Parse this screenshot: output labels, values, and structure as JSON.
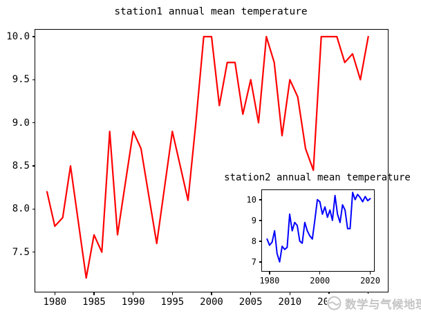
{
  "figure": {
    "background": "#ffffff",
    "watermark": {
      "text": "数学与气候地理",
      "color": "#c5c5c5",
      "icon": "wave-circle-logo"
    }
  },
  "chart_data": [
    {
      "id": "main",
      "type": "line",
      "title": "station1 annual mean temperature",
      "series_name": "station1",
      "color": "#ff0000",
      "line_width": 2.2,
      "xlabel": "",
      "ylabel": "",
      "legend": "none",
      "grid": false,
      "xlim": [
        1977.5,
        2022.5
      ],
      "ylim": [
        7.04,
        10.08
      ],
      "xticks": [
        1980,
        1985,
        1990,
        1995,
        2000,
        2005,
        2010,
        2015,
        2020
      ],
      "xtick_labels": [
        "1980",
        "1985",
        "1990",
        "1995",
        "2000",
        "2005",
        "2010",
        "2015",
        "2020"
      ],
      "yticks": [
        10.0,
        9.5,
        9.0,
        8.5,
        8.0,
        7.5
      ],
      "ytick_labels": [
        "10.0",
        "9.5",
        "9.0",
        "8.5",
        "8.0",
        "7.5"
      ],
      "x": [
        1979,
        1980,
        1981,
        1982,
        1983,
        1984,
        1985,
        1986,
        1987,
        1988,
        1989,
        1990,
        1991,
        1992,
        1993,
        1994,
        1995,
        1996,
        1997,
        1998,
        1999,
        2000,
        2001,
        2002,
        2003,
        2004,
        2005,
        2006,
        2007,
        2008,
        2009,
        2010,
        2011,
        2012,
        2013,
        2014,
        2015,
        2016,
        2017,
        2018,
        2019,
        2020
      ],
      "values": [
        8.2,
        7.8,
        7.9,
        8.5,
        7.85,
        7.2,
        7.7,
        7.5,
        8.9,
        7.7,
        8.3,
        8.9,
        8.7,
        8.15,
        7.6,
        8.25,
        8.9,
        8.5,
        8.1,
        9.0,
        10.0,
        10.0,
        9.2,
        9.7,
        9.7,
        9.1,
        9.5,
        9.0,
        10.0,
        9.7,
        8.85,
        9.5,
        9.3,
        8.7,
        8.45,
        10.0,
        10.0,
        10.0,
        9.7,
        9.8,
        9.5,
        10.0
      ]
    },
    {
      "id": "inset",
      "type": "line",
      "title": "station2 annual mean temperature",
      "series_name": "station2",
      "color": "#0000ff",
      "line_width": 2,
      "xlabel": "",
      "ylabel": "",
      "legend": "none",
      "grid": false,
      "xlim": [
        1977,
        2021.5
      ],
      "ylim": [
        6.56,
        10.46
      ],
      "xticks": [
        1980,
        2000,
        2020
      ],
      "xtick_labels": [
        "1980",
        "2000",
        "2020"
      ],
      "yticks": [
        7,
        8,
        9,
        10
      ],
      "ytick_labels": [
        "7",
        "8",
        "9",
        "10"
      ],
      "x": [
        1979,
        1980,
        1981,
        1982,
        1983,
        1984,
        1985,
        1986,
        1987,
        1988,
        1989,
        1990,
        1991,
        1992,
        1993,
        1994,
        1995,
        1996,
        1997,
        1998,
        1999,
        2000,
        2001,
        2002,
        2003,
        2004,
        2005,
        2006,
        2007,
        2008,
        2009,
        2010,
        2011,
        2012,
        2013,
        2014,
        2015,
        2016,
        2017,
        2018,
        2019,
        2020
      ],
      "values": [
        8.1,
        7.8,
        7.95,
        8.5,
        7.4,
        7.0,
        7.75,
        7.6,
        7.7,
        9.3,
        8.5,
        8.9,
        8.75,
        8.0,
        7.9,
        8.9,
        8.5,
        8.25,
        8.1,
        9.0,
        10.0,
        9.9,
        9.3,
        9.65,
        9.15,
        9.5,
        9.0,
        10.2,
        9.3,
        8.9,
        9.75,
        9.5,
        8.6,
        8.6,
        10.35,
        10.0,
        10.25,
        10.1,
        9.9,
        10.15,
        9.95,
        10.05
      ]
    }
  ]
}
